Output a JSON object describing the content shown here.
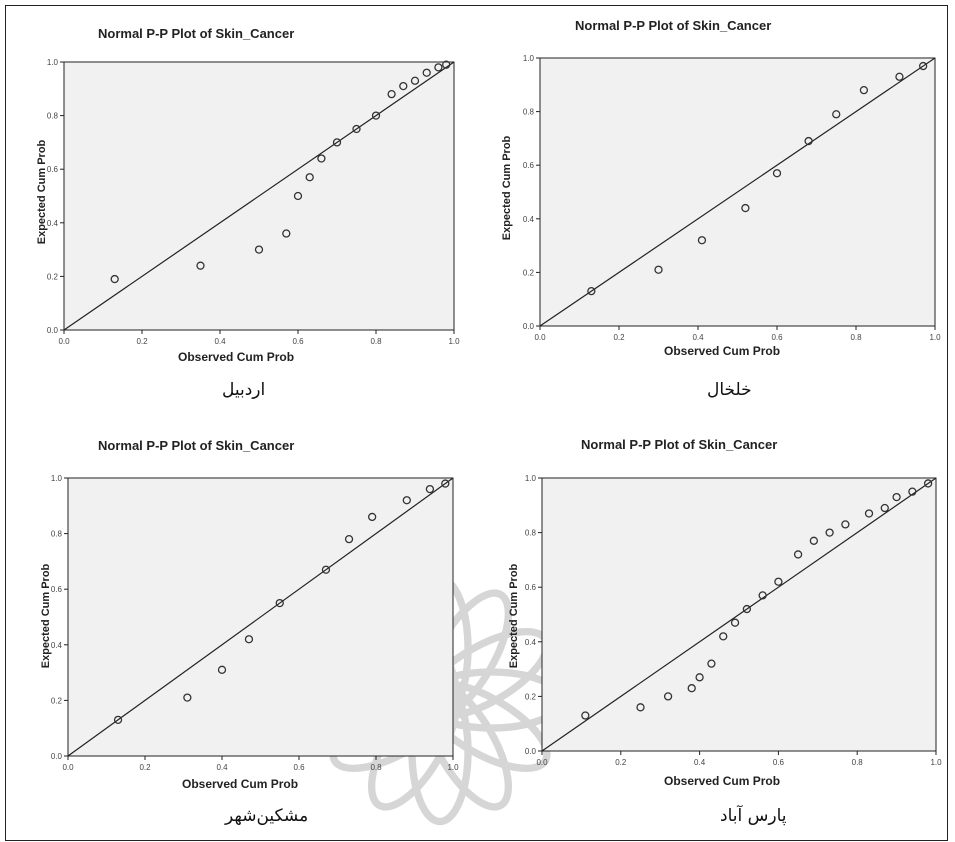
{
  "chart_data": [
    {
      "type": "scatter",
      "title": "Normal P-P Plot of Skin_Cancer",
      "xlabel": "Observed Cum Prob",
      "ylabel": "Expected Cum Prob",
      "caption": "اردبیل",
      "xlim": [
        0,
        1
      ],
      "ylim": [
        0,
        1
      ],
      "xticks": [
        "0.0",
        "0.2",
        "0.4",
        "0.6",
        "0.8",
        "1.0"
      ],
      "yticks": [
        "0.0",
        "0.2",
        "0.4",
        "0.6",
        "0.8",
        "1.0"
      ],
      "x": [
        0.13,
        0.35,
        0.5,
        0.57,
        0.6,
        0.63,
        0.66,
        0.7,
        0.75,
        0.8,
        0.84,
        0.87,
        0.9,
        0.93,
        0.96,
        0.98
      ],
      "y": [
        0.19,
        0.24,
        0.3,
        0.36,
        0.5,
        0.57,
        0.64,
        0.7,
        0.75,
        0.8,
        0.88,
        0.91,
        0.93,
        0.96,
        0.98,
        0.99
      ],
      "reference_line": true,
      "grid": false
    },
    {
      "type": "scatter",
      "title": "Normal P-P Plot of Skin_Cancer",
      "xlabel": "Observed Cum Prob",
      "ylabel": "Expected Cum Prob",
      "caption": "خلخال",
      "xlim": [
        0,
        1
      ],
      "ylim": [
        0,
        1
      ],
      "xticks": [
        "0.0",
        "0.2",
        "0.4",
        "0.6",
        "0.8",
        "1.0"
      ],
      "yticks": [
        "0.0",
        "0.2",
        "0.4",
        "0.6",
        "0.8",
        "1.0"
      ],
      "x": [
        0.13,
        0.3,
        0.41,
        0.52,
        0.6,
        0.68,
        0.75,
        0.82,
        0.91,
        0.97
      ],
      "y": [
        0.13,
        0.21,
        0.32,
        0.44,
        0.57,
        0.69,
        0.79,
        0.88,
        0.93,
        0.97
      ],
      "reference_line": true,
      "grid": false
    },
    {
      "type": "scatter",
      "title": "Normal P-P Plot of Skin_Cancer",
      "xlabel": "Observed Cum Prob",
      "ylabel": "Expected Cum Prob",
      "caption": "مشکین‌شهر",
      "xlim": [
        0,
        1
      ],
      "ylim": [
        0,
        1
      ],
      "xticks": [
        "0.0",
        "0.2",
        "0.4",
        "0.6",
        "0.8",
        "1.0"
      ],
      "yticks": [
        "0.0",
        "0.2",
        "0.4",
        "0.6",
        "0.8",
        "1.0"
      ],
      "x": [
        0.13,
        0.31,
        0.4,
        0.47,
        0.55,
        0.67,
        0.73,
        0.79,
        0.88,
        0.94,
        0.98
      ],
      "y": [
        0.13,
        0.21,
        0.31,
        0.42,
        0.55,
        0.67,
        0.78,
        0.86,
        0.92,
        0.96,
        0.98
      ],
      "reference_line": true,
      "grid": false
    },
    {
      "type": "scatter",
      "title": "Normal P-P Plot of Skin_Cancer",
      "xlabel": "Observed Cum Prob",
      "ylabel": "Expected Cum Prob",
      "caption": "پارس آباد",
      "xlim": [
        0,
        1
      ],
      "ylim": [
        0,
        1
      ],
      "xticks": [
        "0.0",
        "0.2",
        "0.4",
        "0.6",
        "0.8",
        "1.0"
      ],
      "yticks": [
        "0.0",
        "0.2",
        "0.4",
        "0.6",
        "0.8",
        "1.0"
      ],
      "x": [
        0.11,
        0.25,
        0.32,
        0.38,
        0.4,
        0.43,
        0.46,
        0.49,
        0.52,
        0.56,
        0.6,
        0.65,
        0.69,
        0.73,
        0.77,
        0.83,
        0.87,
        0.9,
        0.94,
        0.98
      ],
      "y": [
        0.13,
        0.16,
        0.2,
        0.23,
        0.27,
        0.32,
        0.42,
        0.47,
        0.52,
        0.57,
        0.62,
        0.72,
        0.77,
        0.8,
        0.83,
        0.87,
        0.89,
        0.93,
        0.95,
        0.98
      ],
      "reference_line": true,
      "grid": false
    }
  ],
  "style": {
    "plot_background": "#f1f1f1",
    "line_color": "#222222",
    "marker_color": "#333333",
    "border_color": "#222222",
    "watermark_color": "#d6d6d6"
  }
}
